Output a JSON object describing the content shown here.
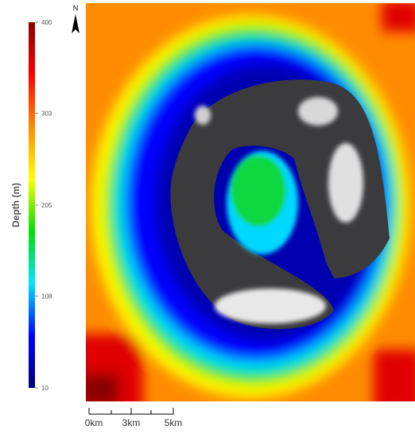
{
  "legend": {
    "title": "Depth (m)",
    "lim": [
      10,
      400
    ],
    "ticks": [
      10,
      108,
      205,
      303,
      400
    ],
    "colors": [
      "#00007a",
      "#0000ff",
      "#00e5ff",
      "#00e000",
      "#ffff00",
      "#ff8c00",
      "#ff0000",
      "#8b0000"
    ]
  },
  "north": "N",
  "scale_bar": {
    "labels": [
      "0km",
      "3km",
      "5km"
    ]
  }
}
